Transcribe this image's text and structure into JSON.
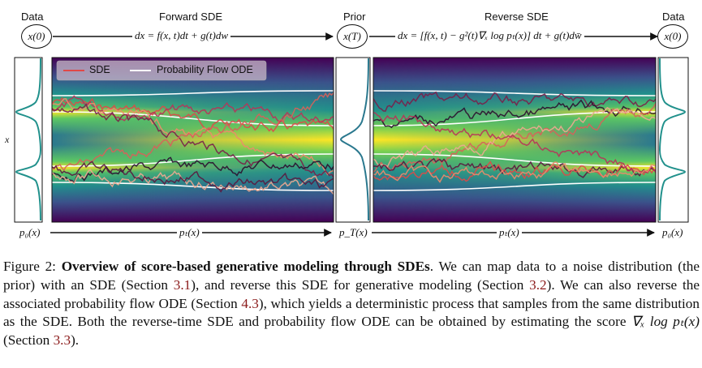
{
  "figure": {
    "top_labels": {
      "data_left": "Data",
      "forward": "Forward SDE",
      "prior": "Prior",
      "reverse": "Reverse SDE",
      "data_right": "Data"
    },
    "nodes": {
      "left": "x(0)",
      "middle": "x(T)",
      "right": "x(0)"
    },
    "equations": {
      "forward": "dx = f(x, t)dt + g(t)dw",
      "reverse": "dx = [f(x, t) − g²(t)∇ₓ log pₜ(x)] dt + g(t)dw̄"
    },
    "legend": {
      "sde": "SDE",
      "ode": "Probability Flow ODE"
    },
    "y_axis_label": "x",
    "bottom_labels": {
      "p0_left": "p₀(x)",
      "pt_left": "pₜ(x)",
      "pT": "p_T(x)",
      "pt_right": "pₜ(x)",
      "p0_right": "p₀(x)"
    },
    "colors": {
      "sde_line": "#e04848",
      "ode_line": "#ffffff",
      "density_high": "#fde725",
      "density_low": "#440154"
    }
  },
  "caption": {
    "label": "Figure 2:",
    "title": "Overview of score-based generative modeling through SDEs",
    "text_1": ". We can map data to a noise distribution (the prior) with an SDE (Section ",
    "ref_1": "3.1",
    "text_2": "), and reverse this SDE for generative modeling (Section ",
    "ref_2": "3.2",
    "text_3": "). We can also reverse the associated probability flow ODE (Section ",
    "ref_3": "4.3",
    "text_4": "), which yields a deterministic process that samples from the same distribution as the SDE. Both the reverse-time SDE and probability flow ODE can be obtained by estimating the score ",
    "score_expr": "∇ₓ log pₜ(x)",
    "text_5": " (Section ",
    "ref_4": "3.3",
    "text_6": ")."
  }
}
